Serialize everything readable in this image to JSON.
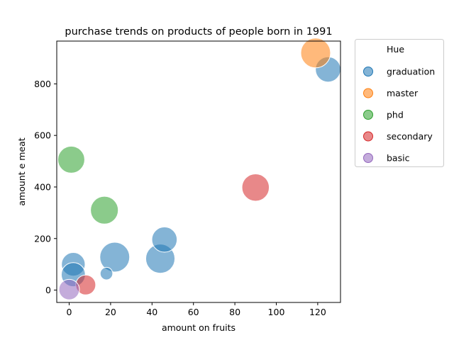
{
  "chart_data": {
    "type": "scatter",
    "title": "purchase trends on products of people born in 1991",
    "xlabel": "amount on fruits",
    "ylabel": "amount e meat",
    "xlim": [
      -6,
      131
    ],
    "ylim": [
      -48,
      966
    ],
    "xticks": [
      0,
      20,
      40,
      60,
      80,
      100,
      120
    ],
    "yticks": [
      0,
      200,
      400,
      600,
      800
    ],
    "grid": false,
    "legend": {
      "placement": "outside-top-right",
      "title": "Hue",
      "entries": [
        "graduation",
        "master",
        "phd",
        "secondary",
        "basic"
      ]
    },
    "colors": {
      "graduation": "#1f77b4",
      "master": "#ff7f0e",
      "phd": "#2ca02c",
      "secondary": "#d62728",
      "basic": "#9467bd"
    },
    "points": [
      {
        "x": 22,
        "y": 128,
        "hue": "graduation",
        "size": 1.0
      },
      {
        "x": 44,
        "y": 122,
        "hue": "graduation",
        "size": 0.97
      },
      {
        "x": 125,
        "y": 856,
        "hue": "graduation",
        "size": 0.78
      },
      {
        "x": 46,
        "y": 196,
        "hue": "graduation",
        "size": 0.78
      },
      {
        "x": 2,
        "y": 100,
        "hue": "graduation",
        "size": 0.7
      },
      {
        "x": 2,
        "y": 60,
        "hue": "graduation",
        "size": 0.72
      },
      {
        "x": 18,
        "y": 64,
        "hue": "graduation",
        "size": 0.16
      },
      {
        "x": 119,
        "y": 920,
        "hue": "master",
        "size": 1.0
      },
      {
        "x": 1,
        "y": 506,
        "hue": "phd",
        "size": 0.86
      },
      {
        "x": 17,
        "y": 310,
        "hue": "phd",
        "size": 0.9
      },
      {
        "x": 90,
        "y": 398,
        "hue": "secondary",
        "size": 0.88
      },
      {
        "x": 8,
        "y": 20,
        "hue": "secondary",
        "size": 0.52
      },
      {
        "x": 0,
        "y": 2,
        "hue": "basic",
        "size": 0.55
      }
    ]
  }
}
